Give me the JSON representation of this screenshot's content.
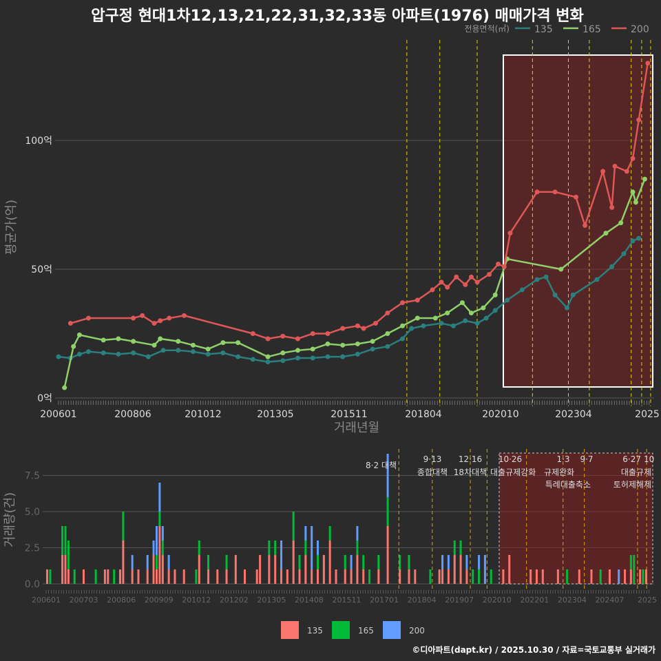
{
  "title": "압구정 현대1차12,13,21,22,31,32,33동 아파트(1976) 매매가격 변화",
  "footer": "©디아파트(dapt.kr) / 2025.10.30 / 자료=국토교통부 실거래가",
  "chart_data": [
    {
      "type": "line",
      "title": "압구정 현대1차12,13,21,22,31,32,33동 아파트(1976) 매매가격 변화",
      "xlabel": "거래년월",
      "ylabel": "평균가(억)",
      "ylim": [
        0,
        130
      ],
      "yticks": [
        "0억",
        "50억",
        "100억"
      ],
      "ytick_values": [
        0,
        50,
        100
      ],
      "xticks": [
        "200601",
        "200806",
        "201012",
        "201305",
        "201511",
        "201804",
        "202010",
        "202304",
        "2025"
      ],
      "legend_title": "전용면적(㎡)",
      "legend_position": "top-right",
      "colors": {
        "135": "#2a7f7f",
        "165": "#8fd16a",
        "200": "#e05757"
      },
      "series": [
        {
          "name": "135",
          "points": [
            [
              2006.0,
              16
            ],
            [
              2006.4,
              15.5
            ],
            [
              2006.7,
              17
            ],
            [
              2007.0,
              18
            ],
            [
              2007.5,
              17.5
            ],
            [
              2008.0,
              17
            ],
            [
              2008.5,
              17.5
            ],
            [
              2009.0,
              16
            ],
            [
              2009.5,
              18.5
            ],
            [
              2010.0,
              18.5
            ],
            [
              2010.5,
              18
            ],
            [
              2011.0,
              17
            ],
            [
              2011.5,
              17.5
            ],
            [
              2012.0,
              16
            ],
            [
              2012.5,
              15
            ],
            [
              2013.0,
              14
            ],
            [
              2013.5,
              14.5
            ],
            [
              2014.0,
              15.5
            ],
            [
              2014.5,
              15.5
            ],
            [
              2015.0,
              16
            ],
            [
              2015.5,
              16
            ],
            [
              2016.0,
              17
            ],
            [
              2016.5,
              19
            ],
            [
              2017.0,
              20
            ],
            [
              2017.5,
              23
            ],
            [
              2017.8,
              27
            ],
            [
              2018.2,
              28
            ],
            [
              2018.8,
              29
            ],
            [
              2019.2,
              28
            ],
            [
              2019.6,
              30
            ],
            [
              2020.0,
              29
            ],
            [
              2020.3,
              31
            ],
            [
              2020.6,
              34
            ],
            [
              2021.0,
              38
            ],
            [
              2021.5,
              42
            ],
            [
              2022.0,
              46
            ],
            [
              2022.3,
              47
            ],
            [
              2022.6,
              40
            ],
            [
              2023.0,
              35
            ],
            [
              2023.2,
              40
            ],
            [
              2024.0,
              46
            ],
            [
              2024.5,
              51
            ],
            [
              2024.9,
              56
            ],
            [
              2025.2,
              61
            ],
            [
              2025.4,
              62
            ]
          ]
        },
        {
          "name": "165",
          "points": [
            [
              2006.2,
              4
            ],
            [
              2006.5,
              20
            ],
            [
              2006.7,
              24.5
            ],
            [
              2007.5,
              22.5
            ],
            [
              2008.0,
              23
            ],
            [
              2008.5,
              22
            ],
            [
              2009.2,
              20.5
            ],
            [
              2009.4,
              23
            ],
            [
              2010.0,
              22
            ],
            [
              2010.5,
              20.5
            ],
            [
              2011.0,
              19
            ],
            [
              2011.5,
              21.5
            ],
            [
              2012.0,
              21.5
            ],
            [
              2013.0,
              16
            ],
            [
              2013.5,
              17.5
            ],
            [
              2014.0,
              18.5
            ],
            [
              2014.5,
              19
            ],
            [
              2015.0,
              21
            ],
            [
              2015.5,
              20.5
            ],
            [
              2016.0,
              21
            ],
            [
              2016.5,
              22
            ],
            [
              2017.0,
              25
            ],
            [
              2017.5,
              28
            ],
            [
              2018.0,
              31
            ],
            [
              2018.6,
              31
            ],
            [
              2019.0,
              33
            ],
            [
              2019.5,
              37
            ],
            [
              2019.8,
              33
            ],
            [
              2020.2,
              35
            ],
            [
              2020.6,
              40
            ],
            [
              2021.0,
              54
            ],
            [
              2022.8,
              50
            ],
            [
              2024.3,
              64
            ],
            [
              2024.8,
              68
            ],
            [
              2025.2,
              80
            ],
            [
              2025.3,
              76
            ],
            [
              2025.6,
              85
            ]
          ]
        },
        {
          "name": "200",
          "points": [
            [
              2006.4,
              29
            ],
            [
              2007.0,
              31
            ],
            [
              2008.5,
              31
            ],
            [
              2008.8,
              32
            ],
            [
              2009.2,
              29
            ],
            [
              2009.4,
              30
            ],
            [
              2009.7,
              31
            ],
            [
              2010.2,
              32
            ],
            [
              2012.5,
              25
            ],
            [
              2013.0,
              23
            ],
            [
              2013.5,
              24
            ],
            [
              2014.0,
              23
            ],
            [
              2014.5,
              25
            ],
            [
              2015.0,
              25
            ],
            [
              2015.5,
              27
            ],
            [
              2016.0,
              28
            ],
            [
              2016.2,
              27
            ],
            [
              2016.6,
              29
            ],
            [
              2017.0,
              33
            ],
            [
              2017.5,
              37
            ],
            [
              2018.0,
              38
            ],
            [
              2018.5,
              42
            ],
            [
              2018.8,
              45
            ],
            [
              2019.0,
              43
            ],
            [
              2019.3,
              47
            ],
            [
              2019.6,
              44
            ],
            [
              2019.8,
              47
            ],
            [
              2020.0,
              45
            ],
            [
              2020.4,
              48
            ],
            [
              2020.7,
              52
            ],
            [
              2020.9,
              51
            ],
            [
              2021.1,
              64
            ],
            [
              2022.0,
              80
            ],
            [
              2022.6,
              80
            ],
            [
              2023.3,
              78
            ],
            [
              2023.6,
              67
            ],
            [
              2024.2,
              88
            ],
            [
              2024.5,
              74
            ],
            [
              2024.6,
              90
            ],
            [
              2025.0,
              88
            ],
            [
              2025.2,
              93
            ],
            [
              2025.4,
              108
            ],
            [
              2025.7,
              130
            ]
          ]
        }
      ],
      "highlight_range": [
        2020.9,
        2025.8
      ],
      "event_lines": [
        2017.6,
        2018.7,
        2019.95,
        2021.8,
        2023.0,
        2023.7,
        2025.1,
        2025.45,
        2025.75
      ]
    },
    {
      "type": "bar",
      "stacked": true,
      "ylabel": "거래량(건)",
      "ylim": [
        0,
        9
      ],
      "yticks": [
        "0.0",
        "2.5",
        "5.0",
        "7.5"
      ],
      "ytick_values": [
        0,
        2.5,
        5,
        7.5
      ],
      "xticks": [
        "200601",
        "200703",
        "200806",
        "200909",
        "201012",
        "201202",
        "201305",
        "201408",
        "201511",
        "201701",
        "201804",
        "201907",
        "202010",
        "202201",
        "202304",
        "202407",
        "2025"
      ],
      "legend": [
        "135",
        "165",
        "200"
      ],
      "legend_position": "bottom",
      "colors": {
        "135": "#f8766d",
        "165": "#00ba38",
        "200": "#619cff"
      },
      "highlight_range": [
        2020.7,
        2025.8
      ],
      "events": [
        {
          "date": "8·2 대책",
          "t": 2017.6
        },
        {
          "date": "9·13",
          "label": "종합대책",
          "t": 2018.7
        },
        {
          "date": "12·16",
          "label": "18차대책",
          "t": 2019.95
        },
        {
          "t": 2020.5
        },
        {
          "date": "10·26",
          "label": "대출규제강화",
          "t": 2021.8
        },
        {
          "date": "1·3",
          "label": "규제완화",
          "t": 2023.0
        },
        {
          "date": "9·7",
          "label": "특례대출축소",
          "t": 2023.7
        },
        {
          "date": "6·27",
          "label": "대출규제",
          "t": 2025.45
        },
        {
          "date": "10",
          "label": "토허제해제",
          "t": 2025.75
        }
      ],
      "data": [
        [
          2006.0,
          1,
          0,
          0
        ],
        [
          2006.1,
          0,
          1,
          0
        ],
        [
          2006.5,
          2,
          2,
          0
        ],
        [
          2006.6,
          2,
          2,
          0
        ],
        [
          2006.7,
          1,
          2,
          0
        ],
        [
          2006.9,
          0,
          1,
          0
        ],
        [
          2007.2,
          1,
          0,
          0
        ],
        [
          2007.6,
          0,
          1,
          0
        ],
        [
          2007.9,
          1,
          0,
          0
        ],
        [
          2008.0,
          1,
          0,
          0
        ],
        [
          2008.2,
          0,
          1,
          0
        ],
        [
          2008.4,
          1,
          0,
          0
        ],
        [
          2008.5,
          3,
          2,
          0
        ],
        [
          2008.8,
          1,
          0,
          1
        ],
        [
          2009.0,
          1,
          0,
          0
        ],
        [
          2009.3,
          1,
          0,
          1
        ],
        [
          2009.5,
          2,
          0,
          1
        ],
        [
          2009.6,
          1,
          1,
          2
        ],
        [
          2009.7,
          4,
          1,
          2
        ],
        [
          2009.8,
          2,
          1,
          1
        ],
        [
          2010.0,
          1,
          0,
          1
        ],
        [
          2010.2,
          1,
          0,
          0
        ],
        [
          2010.5,
          1,
          0,
          0
        ],
        [
          2010.9,
          0,
          1,
          0
        ],
        [
          2011.0,
          2,
          1,
          0
        ],
        [
          2011.3,
          1,
          1,
          0
        ],
        [
          2011.6,
          1,
          0,
          0
        ],
        [
          2011.9,
          1,
          1,
          0
        ],
        [
          2012.2,
          2,
          0,
          0
        ],
        [
          2012.5,
          1,
          0,
          0
        ],
        [
          2012.9,
          1,
          0,
          0
        ],
        [
          2013.0,
          2,
          0,
          0
        ],
        [
          2013.3,
          2,
          1,
          0
        ],
        [
          2013.5,
          2,
          1,
          0
        ],
        [
          2013.7,
          1,
          0,
          2
        ],
        [
          2013.9,
          1,
          0,
          0
        ],
        [
          2014.1,
          3,
          2,
          0
        ],
        [
          2014.3,
          1,
          1,
          0
        ],
        [
          2014.5,
          2,
          1,
          1
        ],
        [
          2014.7,
          1,
          0,
          3
        ],
        [
          2014.9,
          1,
          1,
          1
        ],
        [
          2015.1,
          2,
          0,
          0
        ],
        [
          2015.3,
          3,
          1,
          0
        ],
        [
          2015.5,
          1,
          0,
          0
        ],
        [
          2015.8,
          1,
          1,
          0
        ],
        [
          2016.0,
          1,
          0,
          1
        ],
        [
          2016.2,
          2,
          1,
          1
        ],
        [
          2016.4,
          1,
          1,
          0
        ],
        [
          2016.6,
          0,
          1,
          0
        ],
        [
          2016.9,
          1,
          1,
          0
        ],
        [
          2017.2,
          4,
          2,
          3
        ],
        [
          2017.6,
          1,
          1,
          0
        ],
        [
          2017.9,
          1,
          1,
          0
        ],
        [
          2018.1,
          1,
          0,
          0
        ],
        [
          2018.6,
          0,
          1,
          0
        ],
        [
          2018.9,
          1,
          0,
          0
        ],
        [
          2019.0,
          1,
          0,
          1
        ],
        [
          2019.2,
          1,
          0,
          1
        ],
        [
          2019.4,
          2,
          1,
          0
        ],
        [
          2019.6,
          2,
          1,
          0
        ],
        [
          2019.8,
          1,
          0,
          1
        ],
        [
          2020.0,
          0,
          1,
          0
        ],
        [
          2020.2,
          0,
          1,
          1
        ],
        [
          2020.4,
          0,
          0,
          2
        ],
        [
          2020.6,
          0,
          1,
          0
        ],
        [
          2021.0,
          1,
          0,
          0
        ],
        [
          2021.2,
          2,
          0,
          0
        ],
        [
          2021.9,
          1,
          0,
          0
        ],
        [
          2022.1,
          1,
          0,
          0
        ],
        [
          2022.3,
          1,
          0,
          0
        ],
        [
          2022.8,
          1,
          0,
          0
        ],
        [
          2023.1,
          0,
          1,
          0
        ],
        [
          2023.5,
          1,
          0,
          0
        ],
        [
          2023.9,
          1,
          0,
          0
        ],
        [
          2024.2,
          0,
          1,
          0
        ],
        [
          2024.5,
          1,
          0,
          0
        ],
        [
          2024.8,
          0,
          0,
          1
        ],
        [
          2025.0,
          1,
          0,
          0
        ],
        [
          2025.2,
          1,
          1,
          0
        ],
        [
          2025.3,
          0,
          2,
          0
        ],
        [
          2025.5,
          1,
          0,
          0
        ],
        [
          2025.6,
          0,
          1,
          0
        ],
        [
          2025.7,
          1,
          0,
          0
        ]
      ]
    }
  ]
}
